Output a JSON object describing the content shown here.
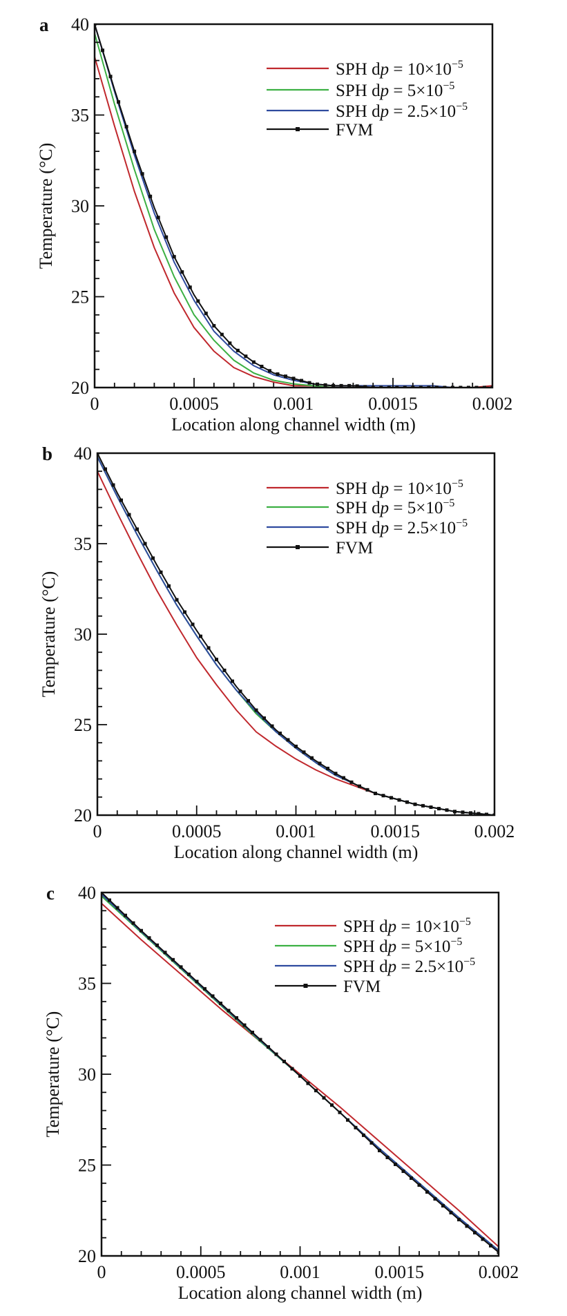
{
  "chart_data": [
    {
      "panel": "a",
      "type": "line",
      "xlabel": "Location along channel width (m)",
      "ylabel": "Temperature (°C)",
      "xlim": [
        0,
        0.002
      ],
      "ylim": [
        20,
        40
      ],
      "xticks": [
        "0",
        "0.0005",
        "0.001",
        "0.0015",
        "0.002"
      ],
      "yticks": [
        "20",
        "25",
        "30",
        "35",
        "40"
      ],
      "grid": false,
      "legend_placement": "top-right",
      "x": [
        0,
        0.0001,
        0.0002,
        0.0003,
        0.0004,
        0.0005,
        0.0006,
        0.0007,
        0.0008,
        0.0009,
        0.001,
        0.0011,
        0.0012,
        0.0013,
        0.0014,
        0.0015,
        0.0016,
        0.0017,
        0.0018,
        0.0019,
        0.002
      ],
      "series": [
        {
          "name": "SPH dp = 10×10−5",
          "label": {
            "pre": "SPH d",
            "var": "p",
            "mid": " = 10×10",
            "exp": "−5"
          },
          "color": "#c0282d",
          "values": [
            38.2,
            34.4,
            30.8,
            27.7,
            25.2,
            23.3,
            22.0,
            21.1,
            20.6,
            20.3,
            20.1,
            20.1,
            20.0,
            20.0,
            20.0,
            20.0,
            20.0,
            20.0,
            20.0,
            20.0,
            20.1
          ]
        },
        {
          "name": "SPH dp = 5×10−5",
          "label": {
            "pre": "SPH d",
            "var": "p",
            "mid": " = 5×10",
            "exp": "−5"
          },
          "color": "#3cb043",
          "values": [
            39.5,
            35.6,
            32.0,
            28.7,
            26.1,
            24.0,
            22.6,
            21.5,
            20.8,
            20.4,
            20.2,
            20.1,
            20.0,
            20.0,
            20.0,
            20.0,
            20.0,
            20.0,
            20.0,
            20.0,
            20.0
          ]
        },
        {
          "name": "SPH dp = 2.5×10−5",
          "label": {
            "pre": "SPH d",
            "var": "p",
            "mid": " = 2.5×10",
            "exp": "−5"
          },
          "color": "#2e4a9e",
          "values": [
            40.0,
            36.3,
            32.8,
            29.6,
            26.9,
            24.8,
            23.1,
            22.0,
            21.2,
            20.7,
            20.4,
            20.2,
            20.1,
            20.1,
            20.1,
            20.1,
            20.1,
            20.1,
            20.0,
            20.0,
            20.0
          ]
        },
        {
          "name": "FVM",
          "label": {
            "pre": "FVM",
            "var": "",
            "mid": "",
            "exp": ""
          },
          "color": "#111111",
          "markers": "square",
          "values": [
            40.0,
            36.4,
            33.0,
            29.9,
            27.2,
            25.1,
            23.4,
            22.2,
            21.4,
            20.8,
            20.5,
            20.2,
            20.1,
            20.1,
            20.0,
            20.0,
            20.0,
            20.0,
            20.0,
            20.0,
            20.0
          ]
        }
      ]
    },
    {
      "panel": "b",
      "type": "line",
      "xlabel": "Location along channel width (m)",
      "ylabel": "Temperature (°C)",
      "xlim": [
        0,
        0.002
      ],
      "ylim": [
        20,
        40
      ],
      "xticks": [
        "0",
        "0.0005",
        "0.001",
        "0.0015",
        "0.002"
      ],
      "yticks": [
        "20",
        "25",
        "30",
        "35",
        "40"
      ],
      "grid": false,
      "legend_placement": "top-right",
      "x": [
        0,
        0.0001,
        0.0002,
        0.0003,
        0.0004,
        0.0005,
        0.0006,
        0.0007,
        0.0008,
        0.0009,
        0.001,
        0.0011,
        0.0012,
        0.0013,
        0.0014,
        0.0015,
        0.0016,
        0.0017,
        0.0018,
        0.0019,
        0.002
      ],
      "series": [
        {
          "name": "SPH dp = 10×10−5",
          "label": {
            "pre": "SPH d",
            "var": "p",
            "mid": " = 10×10",
            "exp": "−5"
          },
          "color": "#c0282d",
          "values": [
            39.0,
            36.7,
            34.5,
            32.4,
            30.5,
            28.7,
            27.2,
            25.8,
            24.6,
            23.8,
            23.1,
            22.5,
            22.0,
            21.6,
            21.2,
            20.9,
            20.6,
            20.4,
            20.2,
            20.1,
            20.0
          ]
        },
        {
          "name": "SPH dp = 5×10−5",
          "label": {
            "pre": "SPH d",
            "var": "p",
            "mid": " = 5×10",
            "exp": "−5"
          },
          "color": "#3cb043",
          "values": [
            39.8,
            37.6,
            35.5,
            33.5,
            31.6,
            29.9,
            28.3,
            26.9,
            25.6,
            24.6,
            23.7,
            22.9,
            22.2,
            21.7,
            21.2,
            20.9,
            20.6,
            20.4,
            20.2,
            20.1,
            20.0
          ]
        },
        {
          "name": "SPH dp = 2.5×10−5",
          "label": {
            "pre": "SPH d",
            "var": "p",
            "mid": " = 2.5×10",
            "exp": "−5"
          },
          "color": "#2e4a9e",
          "values": [
            39.8,
            37.6,
            35.5,
            33.5,
            31.6,
            29.9,
            28.3,
            26.9,
            25.7,
            24.6,
            23.7,
            22.9,
            22.2,
            21.7,
            21.2,
            20.9,
            20.6,
            20.4,
            20.2,
            20.1,
            20.0
          ]
        },
        {
          "name": "FVM",
          "label": {
            "pre": "FVM",
            "var": "",
            "mid": "",
            "exp": ""
          },
          "color": "#111111",
          "markers": "square",
          "values": [
            40.0,
            37.8,
            35.8,
            33.8,
            31.9,
            30.2,
            28.6,
            27.1,
            25.8,
            24.7,
            23.8,
            23.0,
            22.3,
            21.7,
            21.2,
            20.9,
            20.6,
            20.4,
            20.2,
            20.1,
            20.0
          ]
        }
      ]
    },
    {
      "panel": "c",
      "type": "line",
      "xlabel": "Location along channel width (m)",
      "ylabel": "Temperature (°C)",
      "xlim": [
        0,
        0.002
      ],
      "ylim": [
        20,
        40
      ],
      "xticks": [
        "0",
        "0.0005",
        "0.001",
        "0.0015",
        "0.002"
      ],
      "yticks": [
        "20",
        "25",
        "30",
        "35",
        "40"
      ],
      "grid": false,
      "legend_placement": "top-right",
      "x": [
        0,
        0.0002,
        0.0004,
        0.0006,
        0.0008,
        0.001,
        0.0012,
        0.0014,
        0.0016,
        0.0018,
        0.002
      ],
      "series": [
        {
          "name": "SPH dp = 10×10−5",
          "label": {
            "pre": "SPH d",
            "var": "p",
            "mid": " = 10×10",
            "exp": "−5"
          },
          "color": "#c0282d",
          "values": [
            39.4,
            37.4,
            35.5,
            33.6,
            31.8,
            30.0,
            28.2,
            26.3,
            24.4,
            22.5,
            20.5
          ]
        },
        {
          "name": "SPH dp = 5×10−5",
          "label": {
            "pre": "SPH d",
            "var": "p",
            "mid": " = 5×10",
            "exp": "−5"
          },
          "color": "#3cb043",
          "values": [
            39.8,
            37.8,
            35.8,
            33.8,
            31.8,
            29.9,
            27.9,
            25.9,
            24.0,
            22.1,
            20.3
          ]
        },
        {
          "name": "SPH dp = 2.5×10−5",
          "label": {
            "pre": "SPH d",
            "var": "p",
            "mid": " = 2.5×10",
            "exp": "−5"
          },
          "color": "#2e4a9e",
          "values": [
            39.9,
            37.85,
            35.85,
            33.85,
            31.85,
            29.9,
            27.9,
            25.9,
            24.0,
            22.1,
            20.3
          ]
        },
        {
          "name": "FVM",
          "label": {
            "pre": "FVM",
            "var": "",
            "mid": "",
            "exp": ""
          },
          "color": "#111111",
          "markers": "square",
          "values": [
            40.0,
            37.9,
            35.9,
            33.9,
            31.9,
            29.9,
            27.9,
            25.8,
            23.9,
            22.0,
            20.2
          ]
        }
      ]
    }
  ]
}
